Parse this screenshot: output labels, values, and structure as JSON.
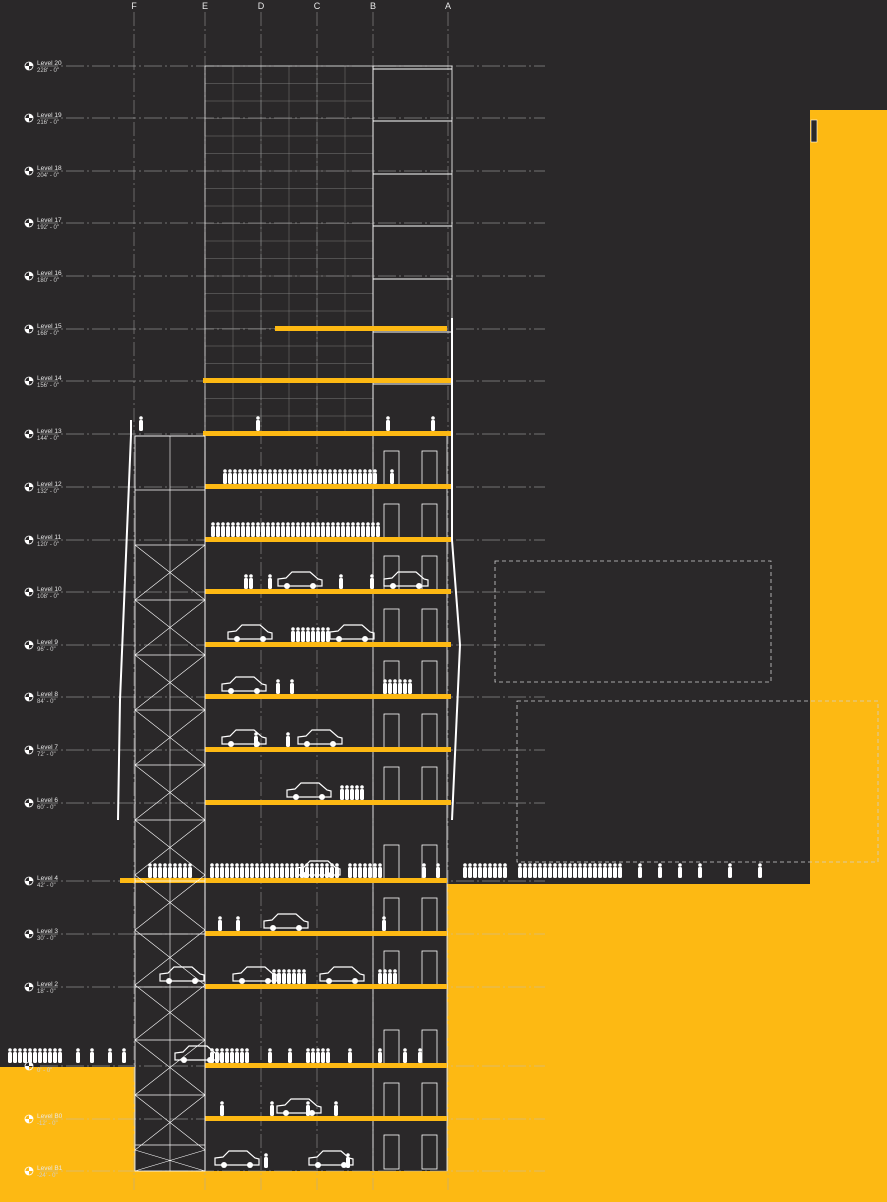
{
  "colors": {
    "background": "#2a2829",
    "accent": "#fdb913",
    "linework": "#ffffff"
  },
  "gridlines": [
    "F",
    "E",
    "D",
    "C",
    "B",
    "A"
  ],
  "levels": [
    {
      "name": "Level 20",
      "elev": "228' - 0\""
    },
    {
      "name": "Level 19",
      "elev": "216' - 0\""
    },
    {
      "name": "Level 18",
      "elev": "204' - 0\""
    },
    {
      "name": "Level 17",
      "elev": "192' - 0\""
    },
    {
      "name": "Level 16",
      "elev": "180' - 0\""
    },
    {
      "name": "Level 15",
      "elev": "168' - 0\""
    },
    {
      "name": "Level 14",
      "elev": "156' - 0\""
    },
    {
      "name": "Level 13",
      "elev": "144' - 0\""
    },
    {
      "name": "Level 12",
      "elev": "132' - 0\""
    },
    {
      "name": "Level 11",
      "elev": "120' - 0\""
    },
    {
      "name": "Level 10",
      "elev": "108' - 0\""
    },
    {
      "name": "Level 9",
      "elev": "96' - 0\""
    },
    {
      "name": "Level 8",
      "elev": "84' - 0\""
    },
    {
      "name": "Level 7",
      "elev": "72' - 0\""
    },
    {
      "name": "Level 6",
      "elev": "60' - 0\""
    },
    {
      "name": "Level 4",
      "elev": "42' - 0\""
    },
    {
      "name": "Level 3",
      "elev": "30' - 0\""
    },
    {
      "name": "Level 2",
      "elev": "18' - 0\""
    },
    {
      "name": "",
      "elev": "0' - 0\""
    },
    {
      "name": "Level B0",
      "elev": "-12' - 0\""
    },
    {
      "name": "Level B1",
      "elev": "-24' - 0\""
    }
  ]
}
